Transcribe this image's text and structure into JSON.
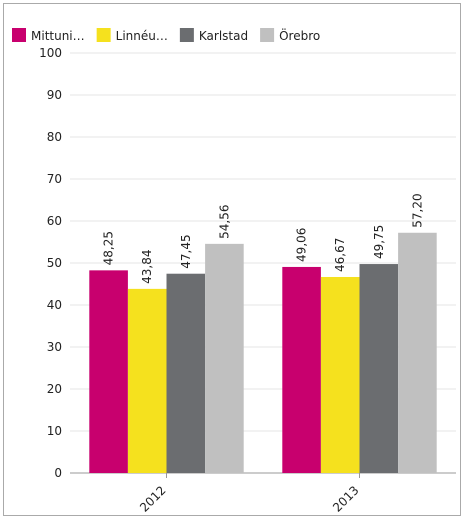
{
  "chart_data": {
    "type": "bar",
    "categories": [
      "2012",
      "2013"
    ],
    "series": [
      {
        "name": "Mittuni…",
        "color": "#c8006e",
        "values": [
          48.25,
          49.06
        ],
        "value_labels": [
          "48,25",
          "49,06"
        ]
      },
      {
        "name": "Linnéu…",
        "color": "#f5e11e",
        "values": [
          43.84,
          46.67
        ],
        "value_labels": [
          "43,84",
          "46,67"
        ]
      },
      {
        "name": "Karlstad",
        "color": "#6b6d70",
        "values": [
          47.45,
          49.75
        ],
        "value_labels": [
          "47,45",
          "49,75"
        ]
      },
      {
        "name": "Örebro",
        "color": "#c0c0c0",
        "values": [
          54.56,
          57.2
        ],
        "value_labels": [
          "54,56",
          "57,20"
        ]
      }
    ],
    "ylim": [
      0,
      100
    ],
    "yticks": [
      0,
      10,
      20,
      30,
      40,
      50,
      60,
      70,
      80,
      90,
      100
    ],
    "grid": true,
    "legend": "top"
  }
}
